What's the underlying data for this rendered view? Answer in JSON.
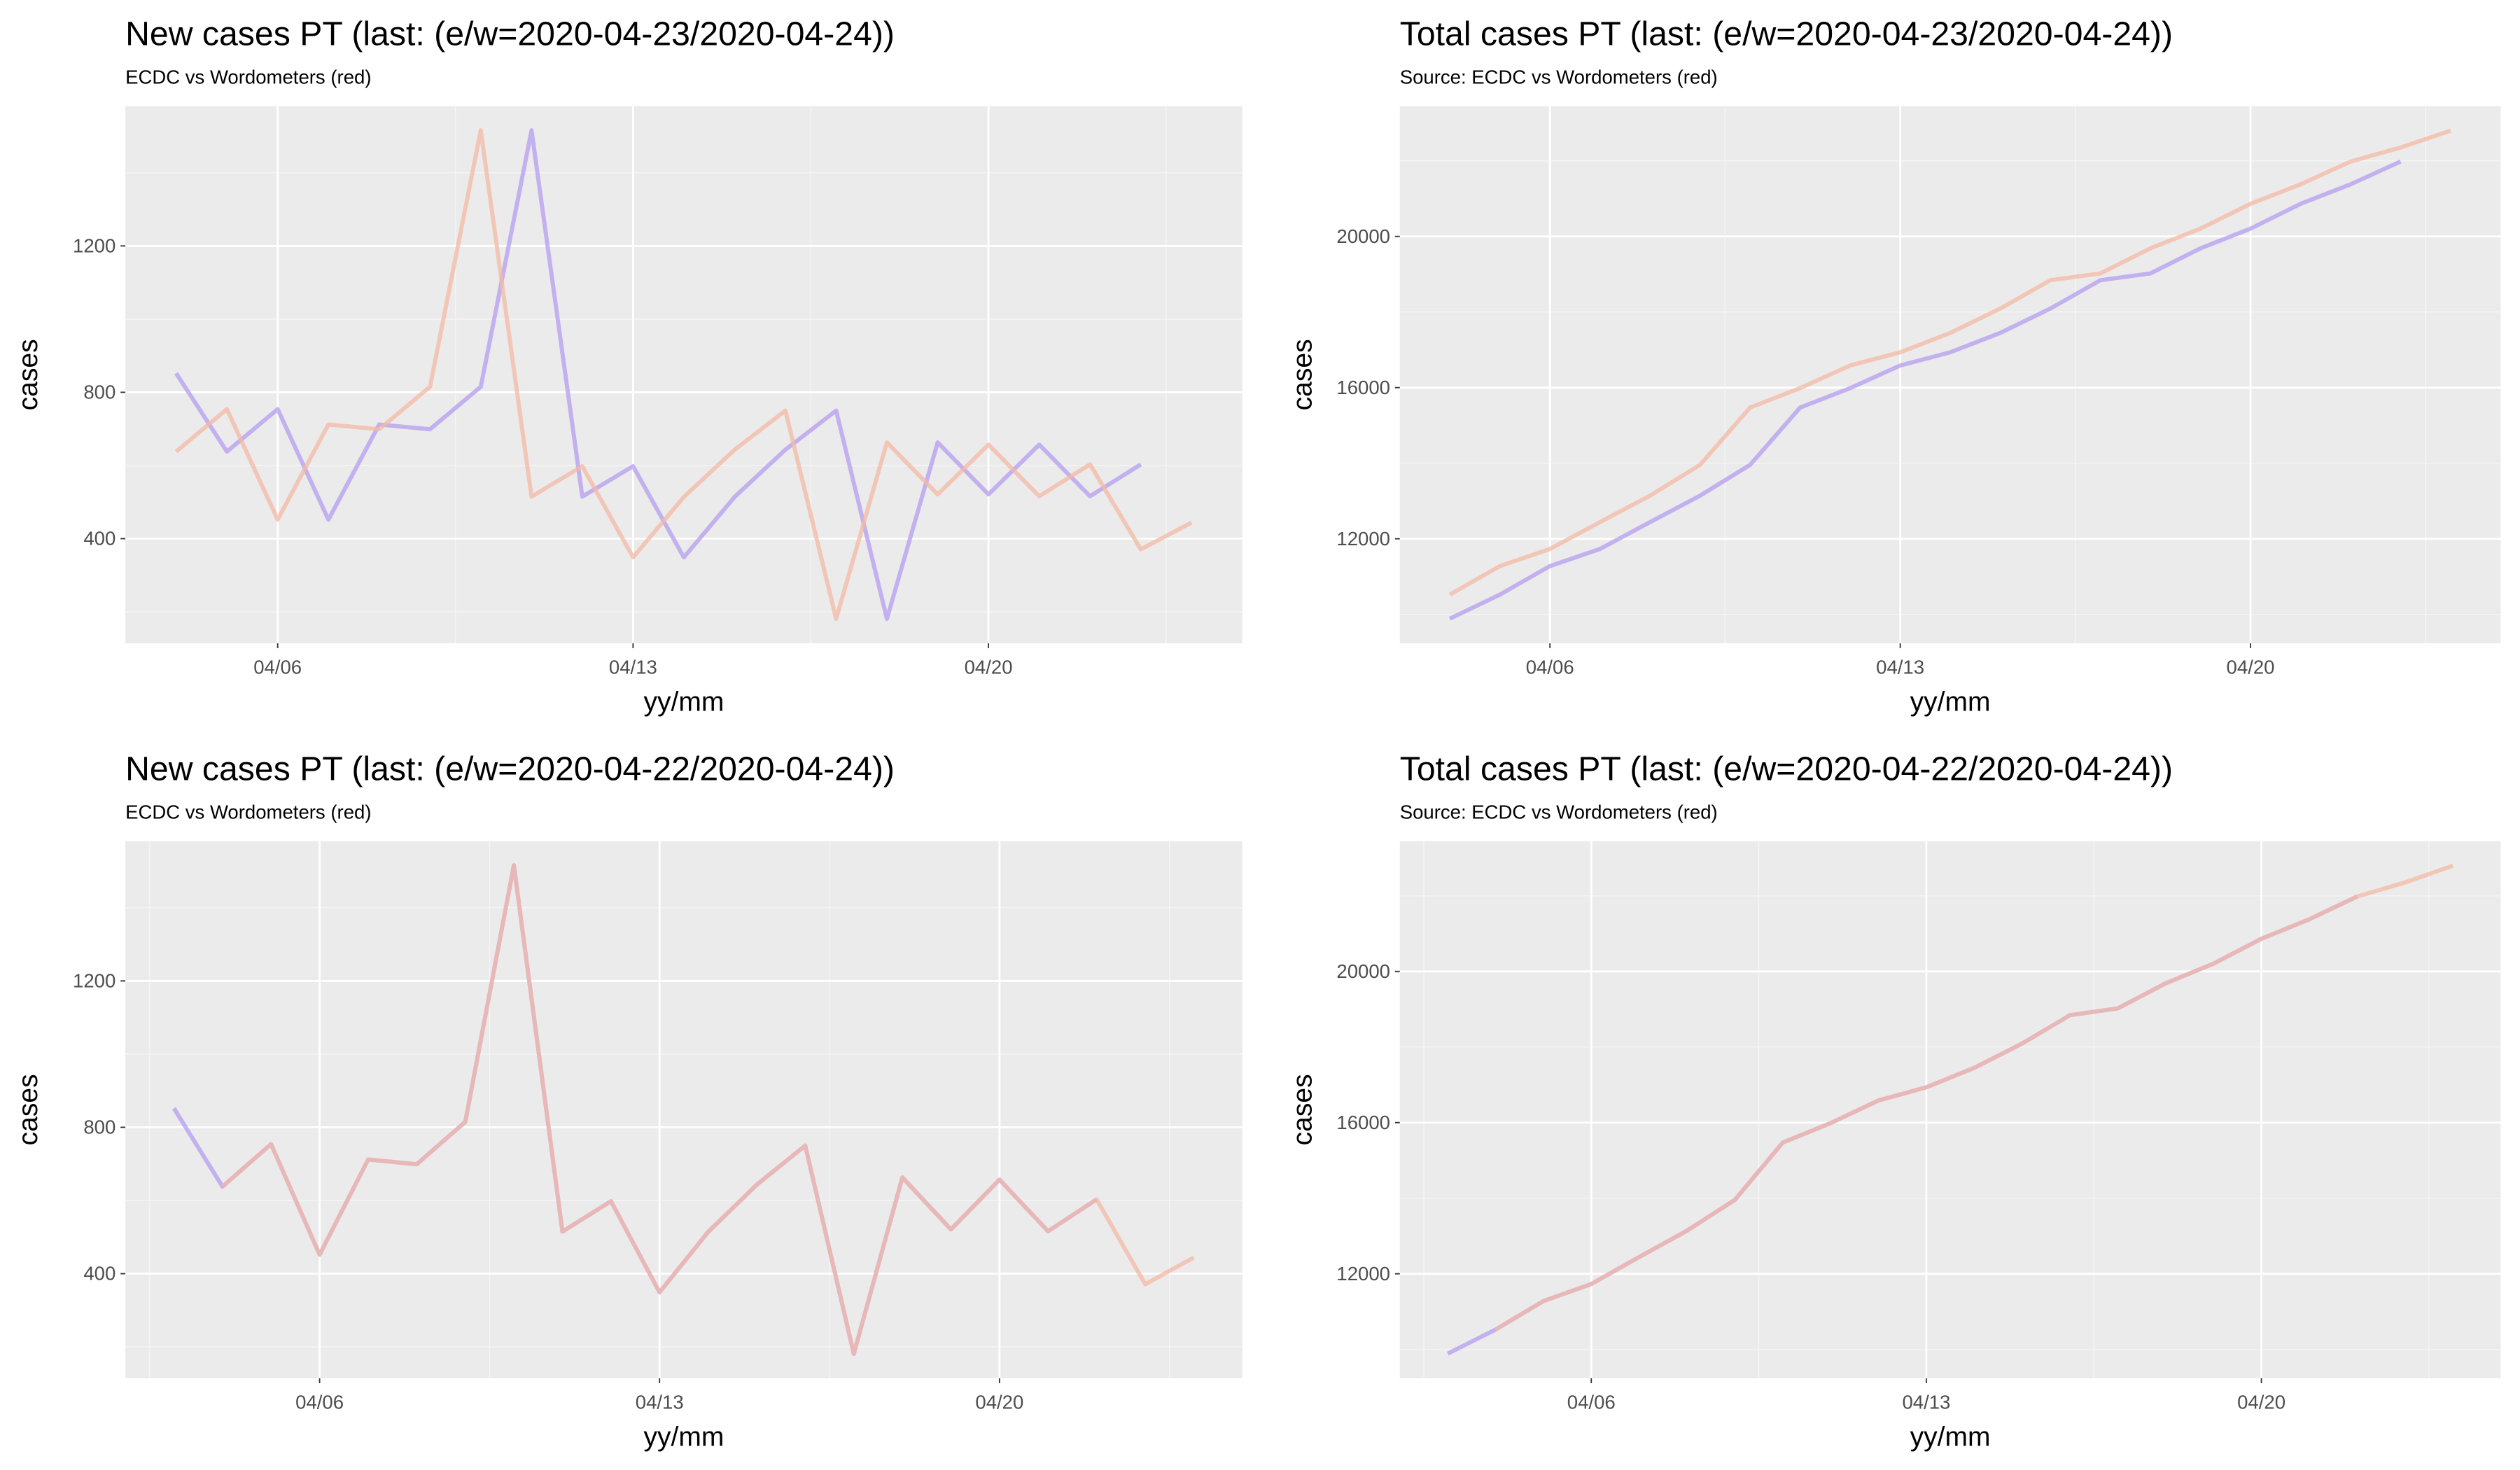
{
  "chart_data": [
    {
      "type": "line",
      "title": "New cases PT (last: (e/w=2020-04-23/2020-04-24))",
      "subtitle": "ECDC vs Wordometers (red)",
      "xlabel": "yy/mm",
      "ylabel": "cases",
      "grid": true,
      "xlim": [
        "04/03",
        "04/25"
      ],
      "xticks": [
        "04/06",
        "04/13",
        "04/20"
      ],
      "ylim": [
        114,
        1582
      ],
      "yticks": [
        400,
        800,
        1200
      ],
      "series": [
        {
          "color": "#b49cf0",
          "x": [
            "04/04",
            "04/05",
            "04/06",
            "04/07",
            "04/08",
            "04/09",
            "04/10",
            "04/11",
            "04/12",
            "04/13",
            "04/14",
            "04/15",
            "04/16",
            "04/17",
            "04/18",
            "04/19",
            "04/20",
            "04/21",
            "04/22",
            "04/23"
          ],
          "values": [
            852,
            638,
            754,
            452,
            712,
            699,
            815,
            1516,
            515,
            598,
            349,
            514,
            643,
            750,
            181,
            663,
            521,
            657,
            516,
            603
          ]
        },
        {
          "color": "#f4b9a4",
          "x": [
            "04/04",
            "04/05",
            "04/06",
            "04/07",
            "04/08",
            "04/09",
            "04/10",
            "04/11",
            "04/12",
            "04/13",
            "04/14",
            "04/15",
            "04/16",
            "04/17",
            "04/18",
            "04/19",
            "04/20",
            "04/21",
            "04/22",
            "04/23",
            "04/24"
          ],
          "values": [
            638,
            754,
            452,
            712,
            699,
            815,
            1516,
            515,
            598,
            349,
            514,
            643,
            750,
            181,
            663,
            521,
            657,
            516,
            603,
            371,
            444
          ]
        }
      ]
    },
    {
      "type": "line",
      "title": "Total cases PT (last: (e/w=2020-04-23/2020-04-24))",
      "subtitle": "Source: ECDC vs Wordometers (red)",
      "xlabel": "yy/mm",
      "ylabel": "cases",
      "grid": true,
      "xlim": [
        "04/03",
        "04/25"
      ],
      "xticks": [
        "04/06",
        "04/13",
        "04/20"
      ],
      "ylim": [
        9234,
        23447
      ],
      "yticks": [
        12000,
        16000,
        20000
      ],
      "series": [
        {
          "color": "#b49cf0",
          "x": [
            "04/04",
            "04/05",
            "04/06",
            "04/07",
            "04/08",
            "04/09",
            "04/10",
            "04/11",
            "04/12",
            "04/13",
            "04/14",
            "04/15",
            "04/16",
            "04/17",
            "04/18",
            "04/19",
            "04/20",
            "04/21",
            "04/22",
            "04/23"
          ],
          "values": [
            9886,
            10524,
            11278,
            11730,
            12442,
            13141,
            13956,
            15472,
            15987,
            16585,
            16934,
            17448,
            18091,
            18841,
            19022,
            19685,
            20206,
            20863,
            21379,
            21982
          ]
        },
        {
          "color": "#f4b9a4",
          "x": [
            "04/04",
            "04/05",
            "04/06",
            "04/07",
            "04/08",
            "04/09",
            "04/10",
            "04/11",
            "04/12",
            "04/13",
            "04/14",
            "04/15",
            "04/16",
            "04/17",
            "04/18",
            "04/19",
            "04/20",
            "04/21",
            "04/22",
            "04/23",
            "04/24"
          ],
          "values": [
            10524,
            11278,
            11730,
            12442,
            13141,
            13956,
            15472,
            15987,
            16585,
            16934,
            17448,
            18091,
            18841,
            19022,
            19685,
            20206,
            20863,
            21379,
            21982,
            22353,
            22797
          ]
        }
      ]
    },
    {
      "type": "line",
      "title": "New cases PT (last: (e/w=2020-04-22/2020-04-24))",
      "subtitle": "ECDC vs Wordometers (red)",
      "xlabel": "yy/mm",
      "ylabel": "cases",
      "grid": true,
      "xlim": [
        "04/02",
        "04/25"
      ],
      "xticks": [
        "04/06",
        "04/13",
        "04/20"
      ],
      "ylim": [
        114,
        1582
      ],
      "yticks": [
        400,
        800,
        1200
      ],
      "series": [
        {
          "color": "#b49cf0",
          "x": [
            "04/03",
            "04/04",
            "04/05",
            "04/06",
            "04/07",
            "04/08",
            "04/09",
            "04/10",
            "04/11",
            "04/12",
            "04/13",
            "04/14",
            "04/15",
            "04/16",
            "04/17",
            "04/18",
            "04/19",
            "04/20",
            "04/21",
            "04/22"
          ],
          "values": [
            852,
            638,
            754,
            452,
            712,
            699,
            815,
            1516,
            515,
            598,
            349,
            514,
            643,
            750,
            181,
            663,
            521,
            657,
            516,
            603
          ]
        },
        {
          "color": "#f4b9a4",
          "x": [
            "04/04",
            "04/05",
            "04/06",
            "04/07",
            "04/08",
            "04/09",
            "04/10",
            "04/11",
            "04/12",
            "04/13",
            "04/14",
            "04/15",
            "04/16",
            "04/17",
            "04/18",
            "04/19",
            "04/20",
            "04/21",
            "04/22",
            "04/23",
            "04/24"
          ],
          "values": [
            638,
            754,
            452,
            712,
            699,
            815,
            1516,
            515,
            598,
            349,
            514,
            643,
            750,
            181,
            663,
            521,
            657,
            516,
            603,
            371,
            444
          ]
        }
      ]
    },
    {
      "type": "line",
      "title": "Total cases PT (last: (e/w=2020-04-22/2020-04-24))",
      "subtitle": "Source: ECDC vs Wordometers (red)",
      "xlabel": "yy/mm",
      "ylabel": "cases",
      "grid": true,
      "xlim": [
        "04/02",
        "04/25"
      ],
      "xticks": [
        "04/06",
        "04/13",
        "04/20"
      ],
      "ylim": [
        9234,
        23447
      ],
      "yticks": [
        12000,
        16000,
        20000
      ],
      "series": [
        {
          "color": "#b49cf0",
          "x": [
            "04/03",
            "04/04",
            "04/05",
            "04/06",
            "04/07",
            "04/08",
            "04/09",
            "04/10",
            "04/11",
            "04/12",
            "04/13",
            "04/14",
            "04/15",
            "04/16",
            "04/17",
            "04/18",
            "04/19",
            "04/20",
            "04/21",
            "04/22"
          ],
          "values": [
            9886,
            10524,
            11278,
            11730,
            12442,
            13141,
            13956,
            15472,
            15987,
            16585,
            16934,
            17448,
            18091,
            18841,
            19022,
            19685,
            20206,
            20863,
            21379,
            21982
          ]
        },
        {
          "color": "#f4b9a4",
          "x": [
            "04/04",
            "04/05",
            "04/06",
            "04/07",
            "04/08",
            "04/09",
            "04/10",
            "04/11",
            "04/12",
            "04/13",
            "04/14",
            "04/15",
            "04/16",
            "04/17",
            "04/18",
            "04/19",
            "04/20",
            "04/21",
            "04/22",
            "04/23",
            "04/24"
          ],
          "values": [
            10524,
            11278,
            11730,
            12442,
            13141,
            13956,
            15472,
            15987,
            16585,
            16934,
            17448,
            18091,
            18841,
            19022,
            19685,
            20206,
            20863,
            21379,
            21982,
            22353,
            22797
          ]
        }
      ]
    }
  ]
}
